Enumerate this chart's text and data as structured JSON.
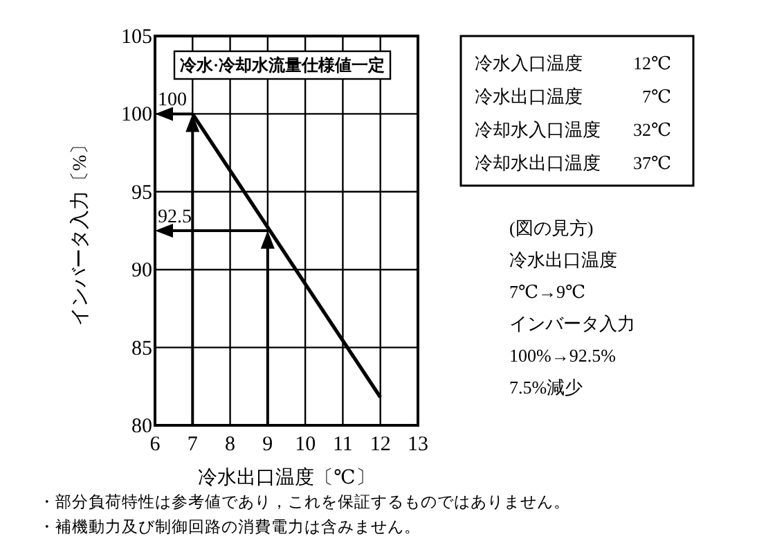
{
  "chart_data": {
    "type": "line",
    "xlabel": "冷水出口温度〔℃〕",
    "ylabel": "インバータ入力〔%〕",
    "x": [
      7,
      12
    ],
    "series": [
      {
        "color": "#000000",
        "values": [
          100,
          81.8
        ]
      }
    ],
    "xlim": [
      6,
      13
    ],
    "ylim": [
      80,
      105
    ],
    "xticks": [
      6,
      7,
      8,
      9,
      10,
      11,
      12,
      13
    ],
    "yticks": [
      80,
      85,
      90,
      95,
      100,
      105
    ],
    "grid": true,
    "marker": "none",
    "line_style": "solid",
    "annotations": [
      {
        "text": "100",
        "x": 7,
        "y": 100
      },
      {
        "text": "92.5",
        "x": 9,
        "y": 92.5
      },
      "冷水·冷却水流量仕様値一定",
      "冷水入口温度",
      "12℃",
      "冷水出口温度",
      "7℃",
      "冷却水入口温度",
      "32℃",
      "冷却水出口温度",
      "37℃",
      "(図の見方)",
      "冷水出口温度",
      "7℃→9℃",
      "インバータ入力",
      "100%→92.5%",
      "7.5%減少",
      "・部分負荷特性は参考値であり，これを保証するものではありません。",
      "・補機動力及び制御回路の消費電力は含みません。"
    ]
  }
}
